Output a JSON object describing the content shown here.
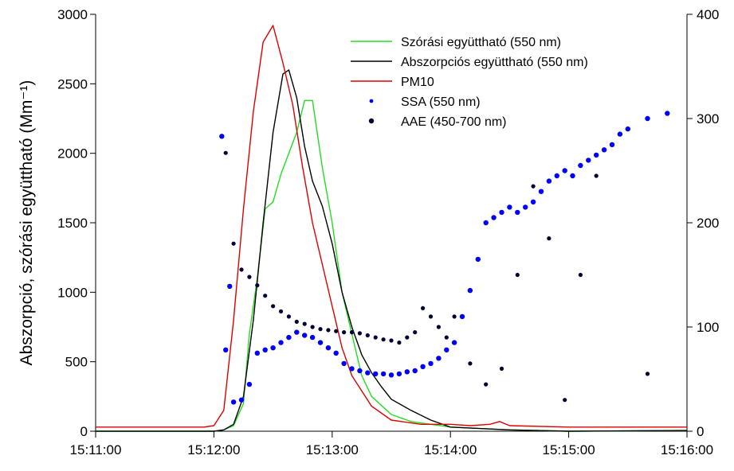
{
  "chart_data": {
    "type": "line",
    "title": "",
    "xlabel": "",
    "ylabel": "Abszorpció, szórási együttható (Mm⁻¹)",
    "y2label": "",
    "x_range": [
      "15:11:00",
      "15:16:00"
    ],
    "ylim": [
      0,
      3000
    ],
    "y2lim": [
      0,
      400
    ],
    "x_ticks": [
      "15:11:00",
      "15:12:00",
      "15:13:00",
      "15:14:00",
      "15:15:00",
      "15:16:00"
    ],
    "y_ticks": [
      "0",
      "500",
      "1000",
      "1500",
      "2000",
      "2500",
      "3000"
    ],
    "y2_ticks": [
      "0",
      "100",
      "200",
      "300",
      "400"
    ],
    "grid": false,
    "legend_position": "top-right",
    "legend": [
      {
        "label": "Szórási együttható (550 nm)",
        "kind": "line",
        "color": "#22dd22"
      },
      {
        "label": "Abszorpciós együttható (550 nm)",
        "kind": "line",
        "color": "#000000"
      },
      {
        "label": "PM10",
        "kind": "line",
        "color": "#dd0000"
      },
      {
        "label": "SSA (550 nm)",
        "kind": "dot",
        "color": "#0000ff"
      },
      {
        "label": "AAE (450-700 nm)",
        "kind": "dot",
        "color": "#000033"
      }
    ],
    "series": [
      {
        "name": "Szórási együttható (550 nm)",
        "axis": "left",
        "color": "#22dd22",
        "type": "line",
        "x": [
          "15:11:00",
          "15:12:00",
          "15:12:05",
          "15:12:10",
          "15:12:15",
          "15:12:18",
          "15:12:22",
          "15:12:26",
          "15:12:30",
          "15:12:34",
          "15:12:38",
          "15:12:42",
          "15:12:46",
          "15:12:50",
          "15:12:55",
          "15:13:00",
          "15:13:05",
          "15:13:10",
          "15:13:15",
          "15:13:20",
          "15:13:30",
          "15:13:40",
          "15:14:00",
          "15:14:30",
          "15:15:00",
          "15:16:00"
        ],
        "y": [
          0,
          0,
          10,
          40,
          200,
          700,
          1100,
          1600,
          1650,
          1850,
          2000,
          2150,
          2380,
          2380,
          1900,
          1500,
          1000,
          700,
          400,
          250,
          120,
          70,
          30,
          10,
          0,
          5
        ]
      },
      {
        "name": "Abszorpciós együttható (550 nm)",
        "axis": "left",
        "color": "#000000",
        "type": "line",
        "x": [
          "15:11:00",
          "15:12:00",
          "15:12:05",
          "15:12:10",
          "15:12:15",
          "15:12:20",
          "15:12:25",
          "15:12:30",
          "15:12:35",
          "15:12:38",
          "15:12:42",
          "15:12:46",
          "15:12:50",
          "15:12:55",
          "15:13:00",
          "15:13:05",
          "15:13:10",
          "15:13:15",
          "15:13:20",
          "15:13:25",
          "15:13:30",
          "15:13:40",
          "15:13:50",
          "15:14:00",
          "15:14:30",
          "15:15:00",
          "15:16:00"
        ],
        "y": [
          0,
          0,
          10,
          50,
          250,
          800,
          1500,
          2150,
          2570,
          2600,
          2400,
          2050,
          1800,
          1620,
          1350,
          1000,
          750,
          550,
          420,
          320,
          230,
          150,
          80,
          30,
          10,
          0,
          5
        ]
      },
      {
        "name": "PM10",
        "axis": "left",
        "color": "#dd0000",
        "type": "line",
        "x": [
          "15:11:00",
          "15:11:55",
          "15:12:00",
          "15:12:05",
          "15:12:10",
          "15:12:15",
          "15:12:20",
          "15:12:25",
          "15:12:30",
          "15:12:35",
          "15:12:40",
          "15:12:45",
          "15:12:50",
          "15:13:00",
          "15:13:05",
          "15:13:10",
          "15:13:20",
          "15:13:30",
          "15:13:45",
          "15:14:00",
          "15:14:10",
          "15:14:20",
          "15:14:25",
          "15:14:30",
          "15:15:00",
          "15:16:00"
        ],
        "y": [
          30,
          30,
          40,
          150,
          800,
          1600,
          2300,
          2800,
          2920,
          2650,
          2350,
          1900,
          1500,
          900,
          600,
          400,
          180,
          80,
          50,
          50,
          40,
          50,
          70,
          40,
          30,
          30
        ]
      },
      {
        "name": "SSA (550 nm)",
        "axis": "right",
        "color": "#0000ff",
        "type": "scatter",
        "x": [
          "15:12:04",
          "15:12:06",
          "15:12:08",
          "15:12:10",
          "15:12:14",
          "15:12:18",
          "15:12:22",
          "15:12:26",
          "15:12:30",
          "15:12:34",
          "15:12:38",
          "15:12:42",
          "15:12:46",
          "15:12:50",
          "15:12:54",
          "15:12:58",
          "15:13:02",
          "15:13:06",
          "15:13:10",
          "15:13:14",
          "15:13:18",
          "15:13:22",
          "15:13:26",
          "15:13:30",
          "15:13:34",
          "15:13:38",
          "15:13:42",
          "15:13:46",
          "15:13:50",
          "15:13:54",
          "15:13:58",
          "15:14:02",
          "15:14:06",
          "15:14:10",
          "15:14:14",
          "15:14:18",
          "15:14:22",
          "15:14:26",
          "15:14:30",
          "15:14:34",
          "15:14:38",
          "15:14:42",
          "15:14:46",
          "15:14:50",
          "15:14:54",
          "15:14:58",
          "15:15:02",
          "15:15:06",
          "15:15:10",
          "15:15:14",
          "15:15:18",
          "15:15:22",
          "15:15:26",
          "15:15:30",
          "15:15:40",
          "15:15:50"
        ],
        "y": [
          283,
          78,
          139,
          28,
          30,
          45,
          75,
          78,
          80,
          85,
          90,
          95,
          92,
          90,
          85,
          80,
          75,
          65,
          60,
          58,
          56,
          55,
          55,
          54,
          55,
          57,
          58,
          62,
          65,
          70,
          78,
          85,
          110,
          135,
          165,
          200,
          205,
          210,
          215,
          210,
          215,
          220,
          230,
          240,
          245,
          250,
          245,
          255,
          260,
          265,
          270,
          275,
          285,
          290,
          300,
          305
        ]
      },
      {
        "name": "AAE (450-700 nm)",
        "axis": "right",
        "color": "#000033",
        "type": "scatter",
        "x": [
          "15:12:06",
          "15:12:10",
          "15:12:14",
          "15:12:18",
          "15:12:22",
          "15:12:26",
          "15:12:30",
          "15:12:34",
          "15:12:38",
          "15:12:42",
          "15:12:46",
          "15:12:50",
          "15:12:54",
          "15:12:58",
          "15:13:02",
          "15:13:06",
          "15:13:10",
          "15:13:14",
          "15:13:18",
          "15:13:22",
          "15:13:26",
          "15:13:30",
          "15:13:34",
          "15:13:38",
          "15:13:42",
          "15:13:46",
          "15:13:50",
          "15:13:54",
          "15:13:58",
          "15:14:02",
          "15:14:10",
          "15:14:18",
          "15:14:26",
          "15:14:34",
          "15:14:42",
          "15:14:50",
          "15:14:58",
          "15:15:06",
          "15:15:14",
          "15:15:40"
        ],
        "y": [
          267,
          180,
          155,
          148,
          140,
          130,
          120,
          115,
          110,
          105,
          103,
          100,
          98,
          97,
          96,
          95,
          95,
          94,
          92,
          90,
          88,
          87,
          85,
          90,
          95,
          118,
          110,
          100,
          90,
          110,
          65,
          45,
          60,
          150,
          235,
          185,
          30,
          150,
          245,
          55
        ]
      }
    ]
  }
}
